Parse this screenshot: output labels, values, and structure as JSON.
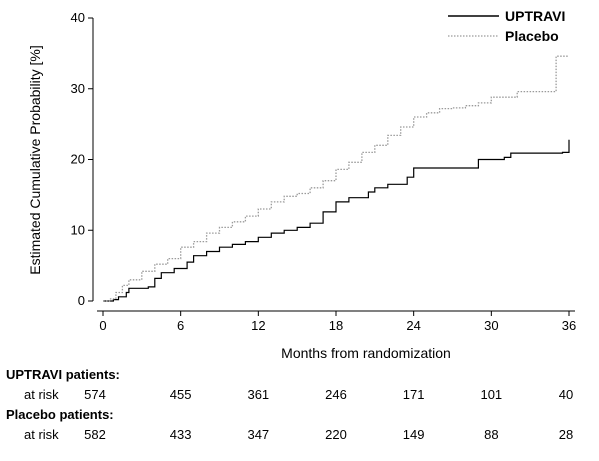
{
  "chart_data": {
    "type": "line",
    "title": "",
    "xlabel": "Months from randomization",
    "ylabel": "Estimated Cumulative Probability [%]",
    "xlim": [
      0,
      36
    ],
    "ylim": [
      0,
      40
    ],
    "x_ticks": [
      "0",
      "6",
      "12",
      "18",
      "24",
      "30",
      "36"
    ],
    "y_ticks": [
      "0",
      "10",
      "20",
      "30",
      "40"
    ],
    "grid": false,
    "legend_position": "top-right",
    "series": [
      {
        "name": "UPTRAVI",
        "style": "solid",
        "color": "#000000",
        "points": [
          [
            0,
            0
          ],
          [
            0.8,
            0.2
          ],
          [
            1.2,
            0.6
          ],
          [
            1.8,
            1.2
          ],
          [
            2.0,
            1.8
          ],
          [
            3.5,
            2.0
          ],
          [
            4.0,
            3.2
          ],
          [
            4.5,
            4.0
          ],
          [
            5.5,
            4.6
          ],
          [
            6.5,
            5.5
          ],
          [
            7.0,
            6.4
          ],
          [
            8.0,
            7.0
          ],
          [
            9.0,
            7.6
          ],
          [
            10.0,
            8.0
          ],
          [
            11.0,
            8.4
          ],
          [
            12.0,
            9.0
          ],
          [
            13.0,
            9.6
          ],
          [
            14.0,
            10.0
          ],
          [
            15.0,
            10.4
          ],
          [
            16.0,
            11.0
          ],
          [
            17.0,
            12.6
          ],
          [
            18.0,
            14.0
          ],
          [
            19.0,
            14.6
          ],
          [
            20.5,
            15.4
          ],
          [
            21.0,
            16.0
          ],
          [
            22.0,
            16.5
          ],
          [
            23.5,
            17.5
          ],
          [
            24.0,
            18.8
          ],
          [
            26.0,
            18.8
          ],
          [
            28.5,
            18.8
          ],
          [
            29.0,
            20.0
          ],
          [
            31.0,
            20.3
          ],
          [
            31.5,
            20.9
          ],
          [
            35.5,
            21.0
          ],
          [
            36.0,
            22.8
          ]
        ]
      },
      {
        "name": "Placebo",
        "style": "dotted",
        "color": "#9a9a9a",
        "points": [
          [
            0,
            0
          ],
          [
            0.5,
            0.3
          ],
          [
            1.0,
            1.2
          ],
          [
            1.5,
            2.2
          ],
          [
            2.0,
            3.0
          ],
          [
            3.0,
            4.2
          ],
          [
            4.0,
            5.2
          ],
          [
            5.0,
            6.0
          ],
          [
            6.0,
            7.6
          ],
          [
            7.0,
            8.4
          ],
          [
            8.0,
            9.6
          ],
          [
            9.0,
            10.4
          ],
          [
            10.0,
            11.2
          ],
          [
            11.0,
            12.0
          ],
          [
            12.0,
            13.0
          ],
          [
            13.0,
            14.0
          ],
          [
            14.0,
            14.8
          ],
          [
            15.0,
            15.2
          ],
          [
            16.0,
            16.0
          ],
          [
            17.0,
            17.0
          ],
          [
            18.0,
            18.6
          ],
          [
            19.0,
            19.6
          ],
          [
            20.0,
            21.0
          ],
          [
            21.0,
            22.0
          ],
          [
            22.0,
            23.4
          ],
          [
            23.0,
            24.6
          ],
          [
            24.0,
            26.0
          ],
          [
            25.0,
            26.6
          ],
          [
            26.0,
            27.2
          ],
          [
            27.0,
            27.3
          ],
          [
            28.0,
            27.6
          ],
          [
            29.0,
            28.0
          ],
          [
            30.0,
            28.8
          ],
          [
            32.0,
            29.6
          ],
          [
            34.5,
            29.6
          ],
          [
            35.0,
            34.6
          ],
          [
            36.0,
            34.6
          ]
        ]
      }
    ]
  },
  "risk_table": {
    "groups": [
      {
        "header": "UPTRAVI patients:",
        "row_label": "at risk",
        "values": [
          "574",
          "455",
          "361",
          "246",
          "171",
          "101",
          "40"
        ]
      },
      {
        "header": "Placebo patients:",
        "row_label": "at risk",
        "values": [
          "582",
          "433",
          "347",
          "220",
          "149",
          "88",
          "28"
        ]
      }
    ]
  }
}
